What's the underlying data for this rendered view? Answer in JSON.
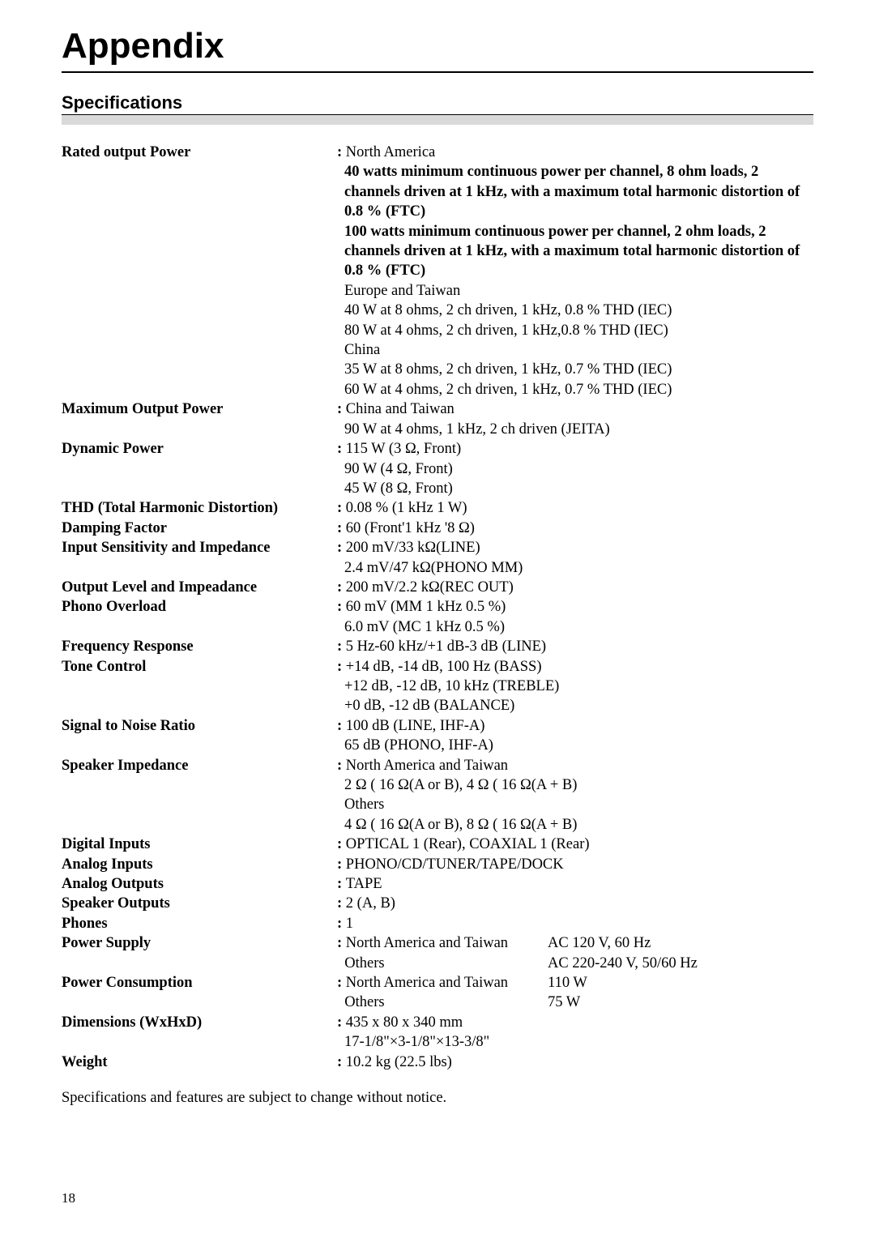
{
  "title": "Appendix",
  "section": "Specifications",
  "footnote": "Specifications and features are subject to change without notice.",
  "page_number": "18",
  "specs": {
    "rated_output_power": {
      "label": "Rated output Power",
      "lines": [
        {
          "t": "North America",
          "colon": true
        },
        {
          "t": "40 watts minimum continuous power per channel, 8 ohm loads, 2 channels driven at 1 kHz, with a maximum total harmonic distortion of 0.8 % (FTC)",
          "bold": true,
          "cont": true
        },
        {
          "t": "100 watts minimum continuous power per channel, 2 ohm loads, 2 channels driven at 1 kHz, with a maximum total harmonic distortion of 0.8 % (FTC)",
          "bold": true,
          "cont": true
        },
        {
          "t": "Europe and Taiwan",
          "cont": true
        },
        {
          "t": "40 W at 8 ohms, 2 ch driven, 1 kHz, 0.8 % THD (IEC)",
          "cont": true
        },
        {
          "t": "80 W at 4 ohms, 2 ch driven, 1 kHz,0.8 % THD (IEC)",
          "cont": true
        },
        {
          "t": "China",
          "cont": true
        },
        {
          "t": "35 W at 8 ohms, 2 ch driven, 1 kHz, 0.7 % THD (IEC)",
          "cont": true
        },
        {
          "t": "60 W at 4 ohms, 2 ch driven, 1 kHz, 0.7 % THD (IEC)",
          "cont": true
        }
      ]
    },
    "max_output_power": {
      "label": "Maximum Output Power",
      "lines": [
        {
          "t": "China and Taiwan",
          "colon": true
        },
        {
          "t": "90 W at 4 ohms, 1 kHz, 2 ch driven (JEITA)",
          "cont": true
        }
      ]
    },
    "dynamic_power": {
      "label": "Dynamic Power",
      "lines": [
        {
          "t": "115 W (3 Ω, Front)",
          "colon": true
        },
        {
          "t": "90 W (4 Ω, Front)",
          "cont": true
        },
        {
          "t": "45 W (8 Ω, Front)",
          "cont": true
        }
      ]
    },
    "thd": {
      "label": "THD (Total Harmonic Distortion)",
      "lines": [
        {
          "t": "0.08 % (1 kHz 1 W)",
          "colon": true
        }
      ]
    },
    "damping": {
      "label": "Damping Factor",
      "lines": [
        {
          "t": "60 (Front'1 kHz  '8 Ω)",
          "colon": true
        }
      ]
    },
    "input_sens": {
      "label": "Input Sensitivity and Impedance",
      "lines": [
        {
          "t": "200 mV/33 kΩ(LINE)",
          "colon": true
        },
        {
          "t": "2.4 mV/47 kΩ(PHONO MM)",
          "cont": true
        }
      ]
    },
    "output_level": {
      "label": "Output Level and Impeadance",
      "lines": [
        {
          "t": "200 mV/2.2 kΩ(REC OUT)",
          "colon": true
        }
      ]
    },
    "phono_overload": {
      "label": "Phono Overload",
      "lines": [
        {
          "t": "60 mV (MM 1 kHz 0.5 %)",
          "colon": true
        },
        {
          "t": "6.0 mV (MC 1 kHz 0.5 %)",
          "cont": true
        }
      ]
    },
    "freq_response": {
      "label": "Frequency Response",
      "lines": [
        {
          "t": "5 Hz-60 kHz/+1 dB-3 dB (LINE)",
          "colon": true
        }
      ]
    },
    "tone_control": {
      "label": "Tone Control",
      "lines": [
        {
          "t": "+14 dB, -14 dB, 100 Hz (BASS)",
          "colon": true
        },
        {
          "t": "+12 dB, -12 dB, 10 kHz (TREBLE)",
          "cont": true
        },
        {
          "t": "+0 dB, -12 dB (BALANCE)",
          "cont": true
        }
      ]
    },
    "snr": {
      "label": "Signal to Noise Ratio",
      "lines": [
        {
          "t": "100 dB (LINE, IHF-A)",
          "colon": true
        },
        {
          "t": "65 dB (PHONO, IHF-A)",
          "cont": true
        }
      ]
    },
    "speaker_imp": {
      "label": "Speaker Impedance",
      "lines": [
        {
          "t": "North America and Taiwan",
          "colon": true
        },
        {
          "t": " 2 Ω (   16 Ω(A or B), 4 Ω (   16 Ω(A + B)",
          "cont": true
        },
        {
          "t": " Others",
          "cont": true
        },
        {
          "t": " 4 Ω (   16 Ω(A or B), 8 Ω (   16 Ω(A + B)",
          "cont": true
        }
      ]
    },
    "digital_inputs": {
      "label": "Digital Inputs",
      "lines": [
        {
          "t": "OPTICAL 1 (Rear), COAXIAL 1 (Rear)",
          "colon": true
        }
      ]
    },
    "analog_inputs": {
      "label": "Analog Inputs",
      "lines": [
        {
          "t": "PHONO/CD/TUNER/TAPE/DOCK",
          "colon": true
        }
      ]
    },
    "analog_outputs": {
      "label": "Analog Outputs",
      "lines": [
        {
          "t": "TAPE",
          "colon": true
        }
      ]
    },
    "speaker_outputs": {
      "label": "Speaker Outputs",
      "lines": [
        {
          "t": "2 (A, B)",
          "colon": true
        }
      ]
    },
    "phones": {
      "label": "Phones",
      "lines": [
        {
          "t": "1",
          "colon": true
        }
      ]
    },
    "power_supply": {
      "label": "Power Supply",
      "two": [
        {
          "a": "North America and Taiwan",
          "b": "AC 120 V, 60 Hz",
          "colon": true
        },
        {
          "a": "Others",
          "b": "AC 220-240 V, 50/60 Hz"
        }
      ]
    },
    "power_consumption": {
      "label": "Power Consumption",
      "two": [
        {
          "a": "North America and Taiwan",
          "b": "110 W",
          "colon": true
        },
        {
          "a": "Others",
          "b": "75 W"
        }
      ]
    },
    "dimensions": {
      "label": "Dimensions (WxHxD)",
      "lines": [
        {
          "t": "435 x 80 x 340 mm",
          "colon": true
        },
        {
          "t": "17-1/8\"×3-1/8\"×13-3/8\"",
          "cont": true
        }
      ]
    },
    "weight": {
      "label": "Weight",
      "lines": [
        {
          "t": "10.2 kg (22.5 lbs)",
          "colon": true
        }
      ]
    }
  },
  "order": [
    "rated_output_power",
    "max_output_power",
    "dynamic_power",
    "thd",
    "damping",
    "input_sens",
    "output_level",
    "phono_overload",
    "freq_response",
    "tone_control",
    "snr",
    "speaker_imp",
    "digital_inputs",
    "analog_inputs",
    "analog_outputs",
    "speaker_outputs",
    "phones",
    "power_supply",
    "power_consumption",
    "dimensions",
    "weight"
  ]
}
